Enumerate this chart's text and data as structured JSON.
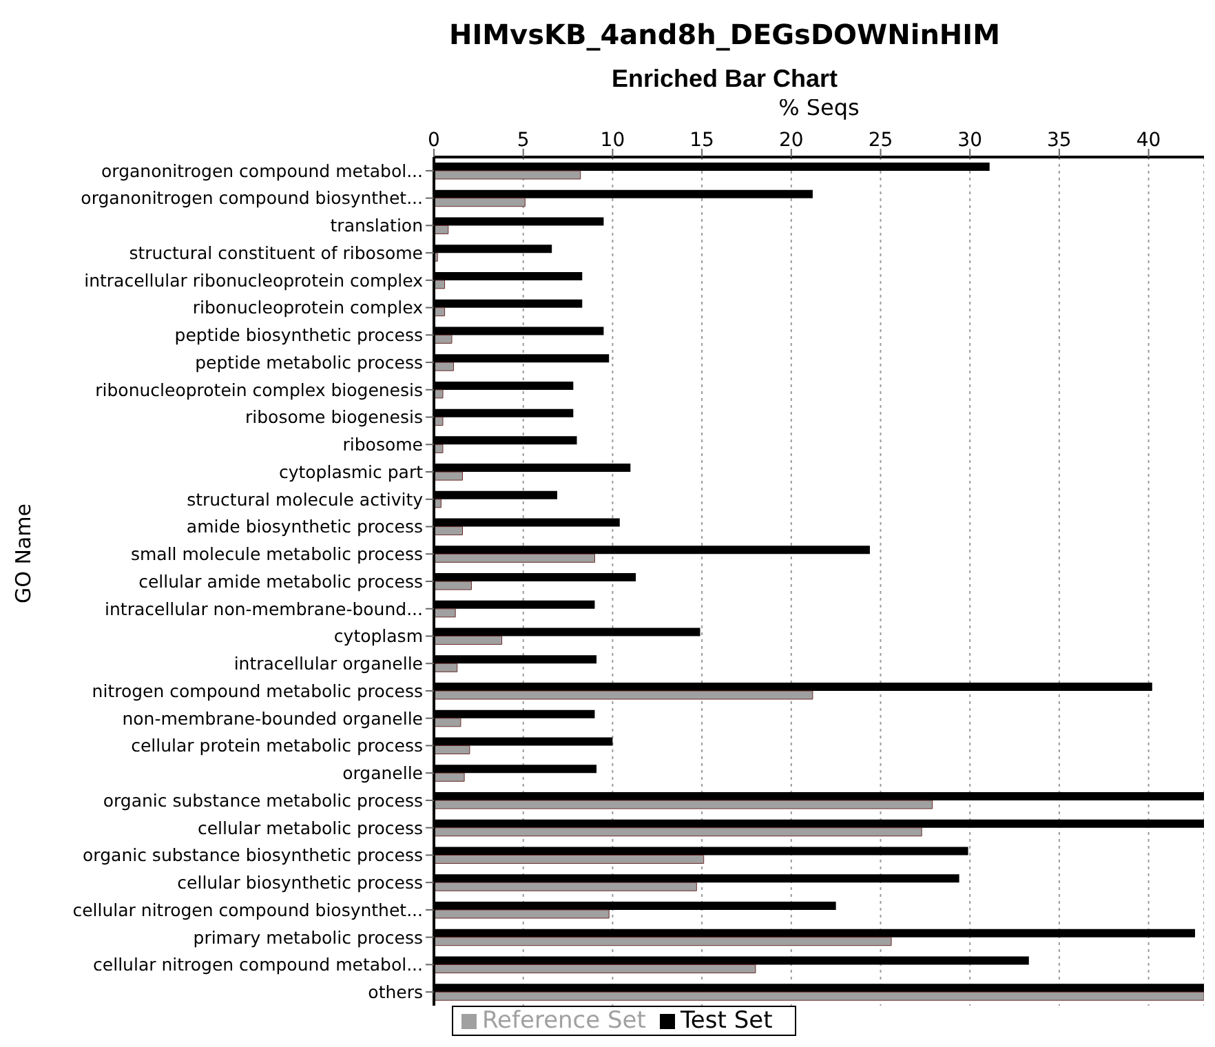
{
  "chart_data": {
    "type": "bar",
    "orientation": "horizontal",
    "title": "HIMvsKB_4and8h_DEGsDOWNinHIM",
    "subtitle": "Enriched Bar Chart",
    "xlabel": "% Seqs",
    "ylabel": "GO Name",
    "categories": [
      "organonitrogen compound metabol...",
      "organonitrogen compound biosynthet...",
      "translation",
      "structural constituent of ribosome",
      "intracellular ribonucleoprotein complex",
      "ribonucleoprotein complex",
      "peptide biosynthetic process",
      "peptide metabolic process",
      "ribonucleoprotein complex biogenesis",
      "ribosome biogenesis",
      "ribosome",
      "cytoplasmic part",
      "structural molecule activity",
      "amide biosynthetic process",
      "small molecule metabolic process",
      "cellular amide metabolic process",
      "intracellular non-membrane-bound...",
      "cytoplasm",
      "intracellular organelle",
      "nitrogen compound metabolic process",
      "non-membrane-bounded organelle",
      "cellular protein metabolic process",
      "organelle",
      "organic substance metabolic process",
      "cellular metabolic process",
      "organic substance biosynthetic process",
      "cellular biosynthetic process",
      "cellular nitrogen compound biosynthet...",
      "primary metabolic process",
      "cellular nitrogen compound metabol...",
      "others"
    ],
    "series": [
      {
        "name": "Test Set",
        "color": "#000000",
        "values": [
          31.1,
          21.2,
          9.5,
          6.6,
          8.3,
          8.3,
          9.5,
          9.8,
          7.8,
          7.8,
          8.0,
          11.0,
          6.9,
          10.4,
          24.4,
          11.3,
          9.0,
          14.9,
          9.1,
          40.2,
          9.0,
          10.0,
          9.1,
          43.1,
          43.1,
          29.9,
          29.4,
          22.5,
          42.6,
          33.3,
          43.1
        ]
      },
      {
        "name": "Reference Set",
        "color": "#a0a0a0",
        "values": [
          8.2,
          5.1,
          0.8,
          0.2,
          0.6,
          0.6,
          1.0,
          1.1,
          0.5,
          0.5,
          0.5,
          1.6,
          0.4,
          1.6,
          9.0,
          2.1,
          1.2,
          3.8,
          1.3,
          21.2,
          1.5,
          2.0,
          1.7,
          27.9,
          27.3,
          15.1,
          14.7,
          9.8,
          25.6,
          18.0,
          43.1
        ]
      }
    ],
    "xlim": [
      0,
      43.1
    ],
    "xticks": [
      0,
      5,
      10,
      15,
      20,
      25,
      30,
      35,
      40
    ],
    "grid": "x",
    "legend": "bottom left"
  }
}
